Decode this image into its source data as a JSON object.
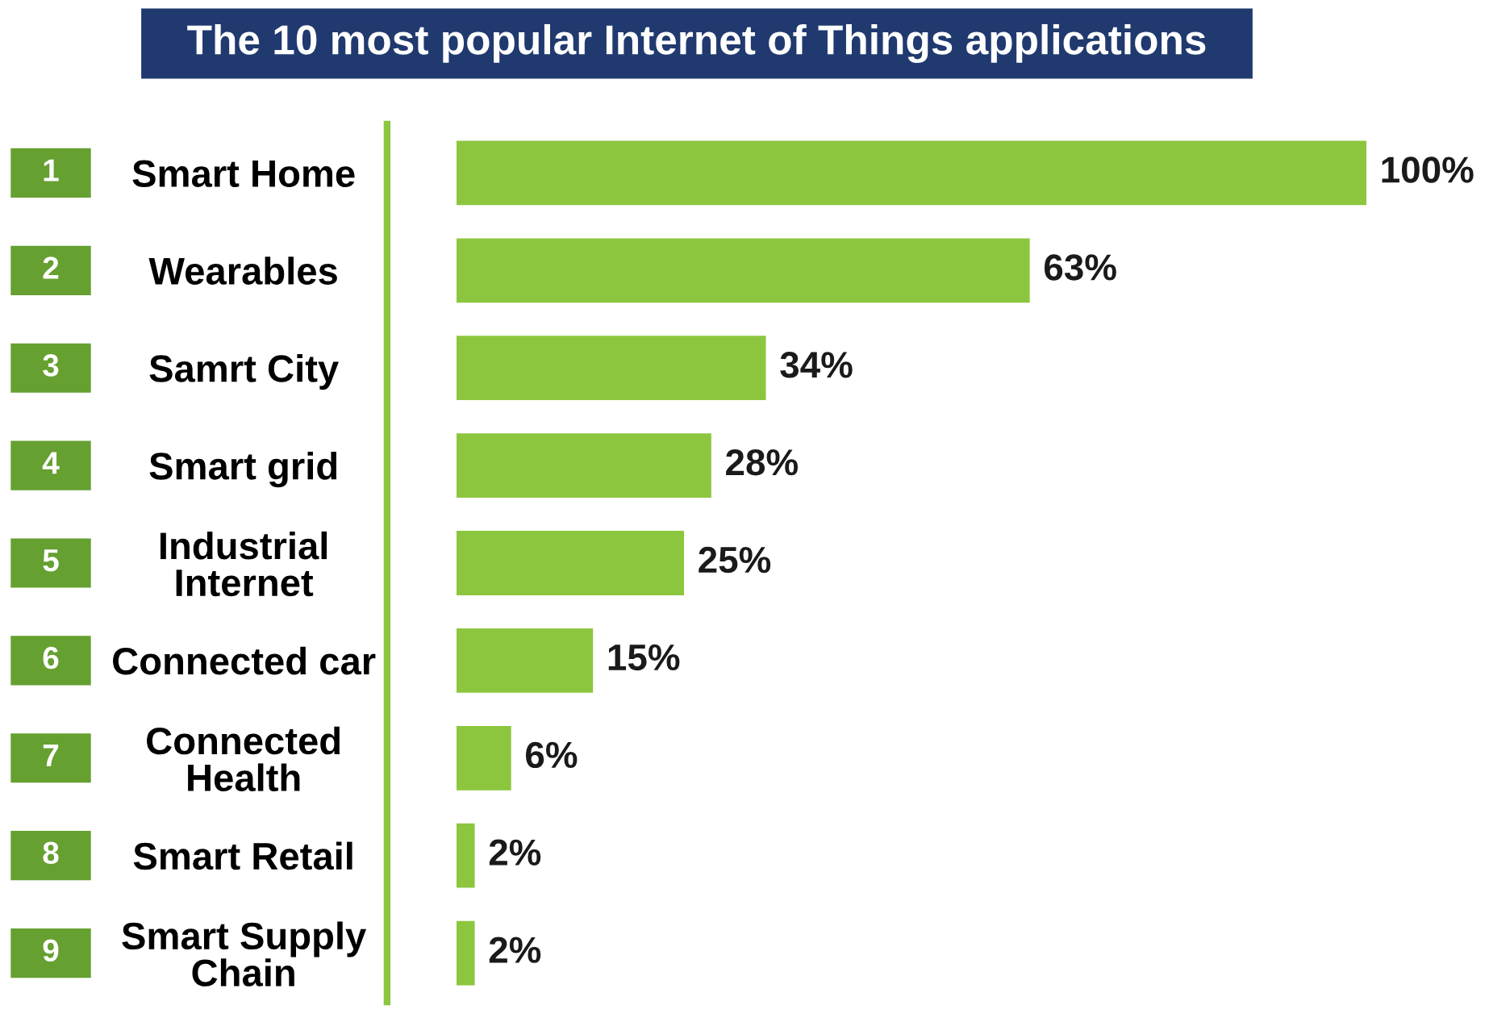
{
  "chart_data": {
    "type": "bar",
    "orientation": "horizontal",
    "title": "The 10 most popular Internet of Things applications",
    "categories": [
      "Smart Home",
      "Wearables",
      "Samrt City",
      "Smart grid",
      "Industrial\nInternet",
      "Connected car",
      "Connected\nHealth",
      "Smart Retail",
      "Smart Supply\nChain"
    ],
    "values": [
      100,
      63,
      34,
      28,
      25,
      15,
      6,
      2,
      2
    ],
    "value_labels": [
      "100%",
      "63%",
      "34%",
      "28%",
      "25%",
      "15%",
      "6%",
      "2%",
      "2%"
    ],
    "color": "#8cc63e",
    "annotations": [
      "1",
      "2",
      "3",
      "4",
      "5",
      "6",
      "7",
      "8",
      "9"
    ]
  }
}
